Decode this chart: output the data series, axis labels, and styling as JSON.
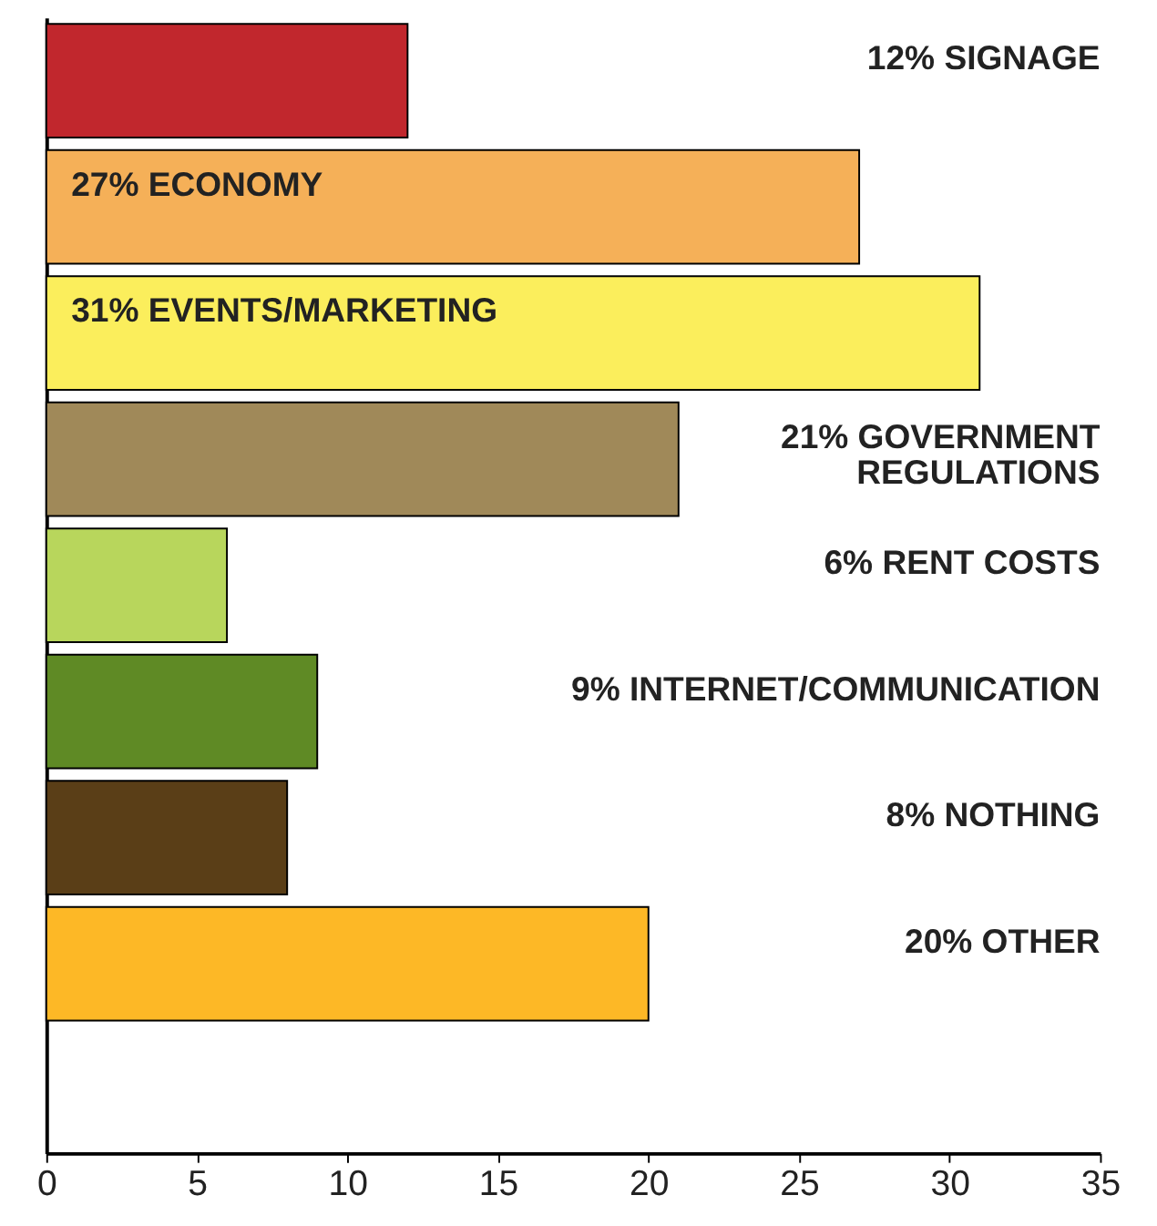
{
  "chart_data": {
    "type": "bar",
    "orientation": "horizontal",
    "categories": [
      "SIGNAGE",
      "ECONOMY",
      "EVENTS/MARKETING",
      "GOVERNMENT REGULATIONS",
      "RENT COSTS",
      "INTERNET/COMMUNICATION",
      "NOTHING",
      "OTHER"
    ],
    "values": [
      12,
      27,
      31,
      21,
      6,
      9,
      8,
      20
    ],
    "value_labels": [
      "12%",
      "27%",
      "31%",
      "21%",
      "6%",
      "9%",
      "8%",
      "20%"
    ],
    "colors": [
      "#c1272d",
      "#f5b058",
      "#fbee5c",
      "#a08959",
      "#b8d65c",
      "#5f8a25",
      "#5a3e17",
      "#fdb826"
    ],
    "xlim": [
      0,
      35
    ],
    "xticks": [
      0,
      5,
      10,
      15,
      20,
      25,
      30,
      35
    ],
    "grid": false,
    "tick_labels": "x"
  }
}
